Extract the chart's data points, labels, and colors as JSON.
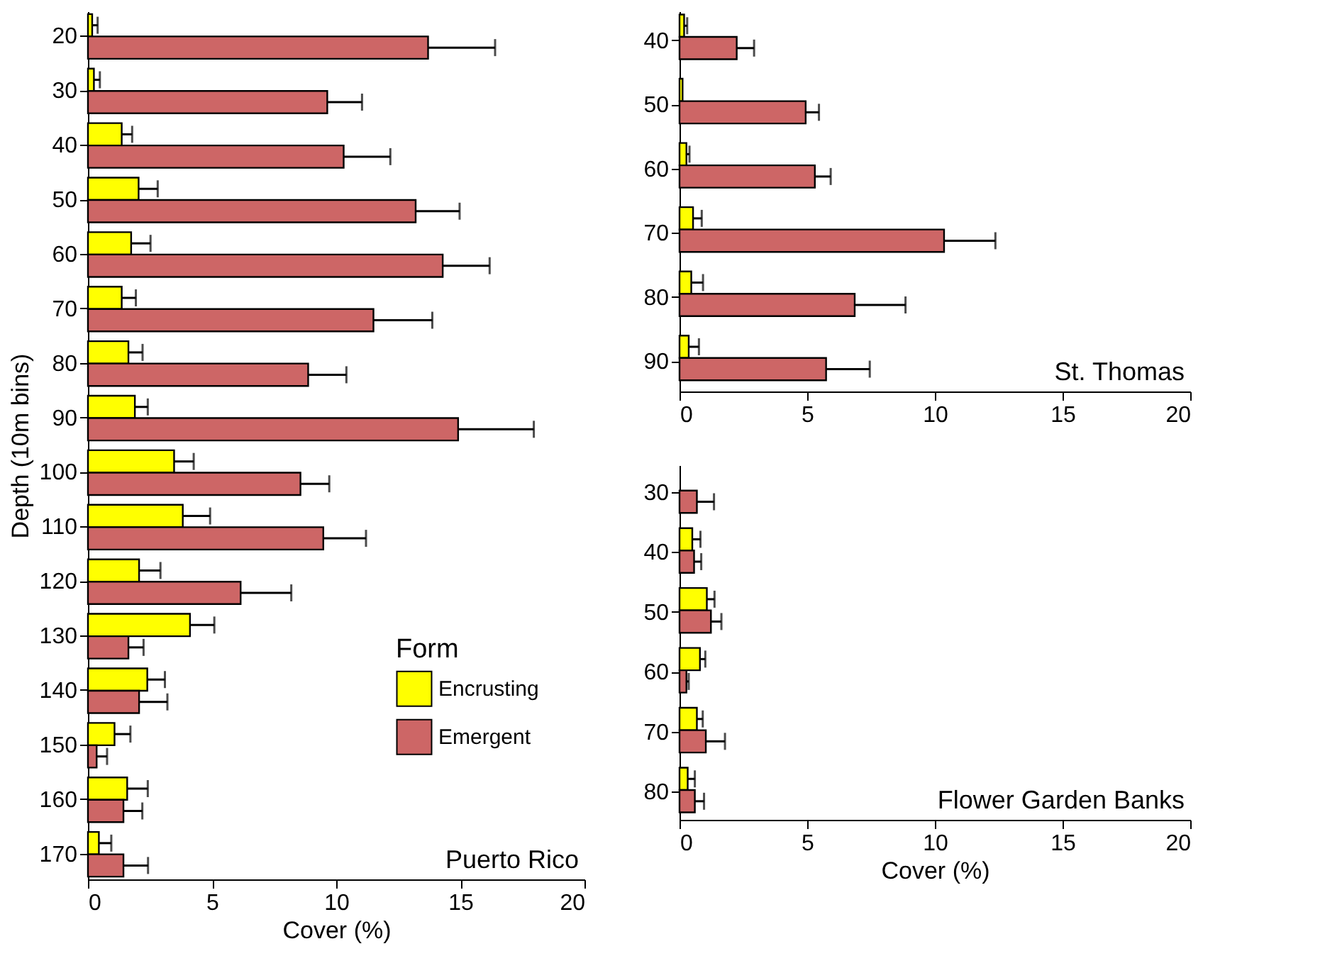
{
  "chart_data": [
    {
      "type": "bar",
      "orientation": "horizontal",
      "title": "Puerto Rico",
      "ylabel": "Depth (10m bins)",
      "xlabel": "Cover (%)",
      "legend_title": "Form",
      "legend": "bottom right",
      "grid": false,
      "categories": [
        "20",
        "30",
        "40",
        "50",
        "60",
        "70",
        "80",
        "90",
        "100",
        "110",
        "120",
        "130",
        "140",
        "150",
        "160",
        "170"
      ],
      "xlim": [
        0,
        20
      ],
      "xticks": [
        0,
        5,
        10,
        15,
        20
      ],
      "series": [
        {
          "name": "Encrusting",
          "color": "#ffff00",
          "values": [
            0.17,
            0.24,
            1.36,
            2.04,
            1.74,
            1.36,
            1.63,
            1.89,
            3.47,
            3.82,
            2.06,
            4.11,
            2.39,
            1.07,
            1.58,
            0.44
          ],
          "errors": [
            [
              0.17,
              0.39
            ],
            [
              0.24,
              0.48
            ],
            [
              1.36,
              1.78
            ],
            [
              2.04,
              2.81
            ],
            [
              1.74,
              2.52
            ],
            [
              1.36,
              1.93
            ],
            [
              1.63,
              2.2
            ],
            [
              1.89,
              2.41
            ],
            [
              3.47,
              4.26
            ],
            [
              3.82,
              4.92
            ],
            [
              2.06,
              2.92
            ],
            [
              4.11,
              5.09
            ],
            [
              2.39,
              3.1
            ],
            [
              1.07,
              1.71
            ],
            [
              1.58,
              2.41
            ],
            [
              0.44,
              0.94
            ]
          ]
        },
        {
          "name": "Emergent",
          "color": "#cd6666",
          "values": [
            13.7,
            9.64,
            10.3,
            13.2,
            14.29,
            11.5,
            8.87,
            14.91,
            8.56,
            9.48,
            6.15,
            1.63,
            2.06,
            0.35,
            1.43,
            1.43
          ],
          "errors": [
            [
              13.7,
              16.4
            ],
            [
              9.64,
              11.04
            ],
            [
              10.3,
              12.18
            ],
            [
              13.2,
              14.97
            ],
            [
              14.29,
              16.18
            ],
            [
              11.5,
              13.87
            ],
            [
              8.87,
              10.41
            ],
            [
              14.91,
              17.96
            ],
            [
              8.56,
              9.72
            ],
            [
              9.48,
              11.2
            ],
            [
              6.15,
              8.19
            ],
            [
              1.63,
              2.24
            ],
            [
              2.06,
              3.2
            ],
            [
              0.35,
              0.77
            ],
            [
              1.43,
              2.19
            ],
            [
              1.43,
              2.42
            ]
          ]
        }
      ]
    },
    {
      "type": "bar",
      "orientation": "horizontal",
      "title": "St. Thomas",
      "grid": false,
      "categories": [
        "40",
        "50",
        "60",
        "70",
        "80",
        "90"
      ],
      "xlim": [
        0,
        20
      ],
      "xticks": [
        0,
        5,
        10,
        15,
        20
      ],
      "series": [
        {
          "color": "#ffff00",
          "values": [
            0.18,
            0.12,
            0.27,
            0.53,
            0.46,
            0.36
          ],
          "errors": [
            [
              0.18,
              0.3
            ],
            null,
            [
              0.27,
              0.39
            ],
            [
              0.53,
              0.87
            ],
            [
              0.46,
              0.92
            ],
            [
              0.36,
              0.76
            ]
          ]
        },
        {
          "color": "#cd6666",
          "values": [
            2.24,
            4.94,
            5.3,
            10.36,
            6.86,
            5.74
          ],
          "errors": [
            [
              2.24,
              2.92
            ],
            [
              4.94,
              5.46
            ],
            [
              5.3,
              5.92
            ],
            [
              10.36,
              12.37
            ],
            [
              6.86,
              8.85
            ],
            [
              5.74,
              7.45
            ]
          ]
        }
      ]
    },
    {
      "type": "bar",
      "orientation": "horizontal",
      "title": "Flower Garden Banks",
      "xlabel": "Cover (%)",
      "grid": false,
      "categories": [
        "30",
        "40",
        "50",
        "60",
        "70",
        "80"
      ],
      "xlim": [
        0,
        20
      ],
      "xticks": [
        0,
        5,
        10,
        15,
        20
      ],
      "series": [
        {
          "color": "#ffff00",
          "values": [
            null,
            0.5,
            1.07,
            0.8,
            0.68,
            0.32
          ],
          "errors": [
            null,
            [
              0.5,
              0.82
            ],
            [
              1.07,
              1.37
            ],
            [
              0.8,
              1.01
            ],
            [
              0.68,
              0.91
            ],
            [
              0.32,
              0.6
            ]
          ]
        },
        {
          "color": "#cd6666",
          "values": [
            0.68,
            0.57,
            1.23,
            0.27,
            1.03,
            0.6
          ],
          "errors": [
            [
              0.68,
              1.35
            ],
            [
              0.57,
              0.85
            ],
            [
              1.23,
              1.64
            ],
            [
              0.27,
              0.36
            ],
            [
              1.03,
              1.78
            ],
            [
              0.6,
              0.96
            ]
          ]
        }
      ]
    }
  ]
}
